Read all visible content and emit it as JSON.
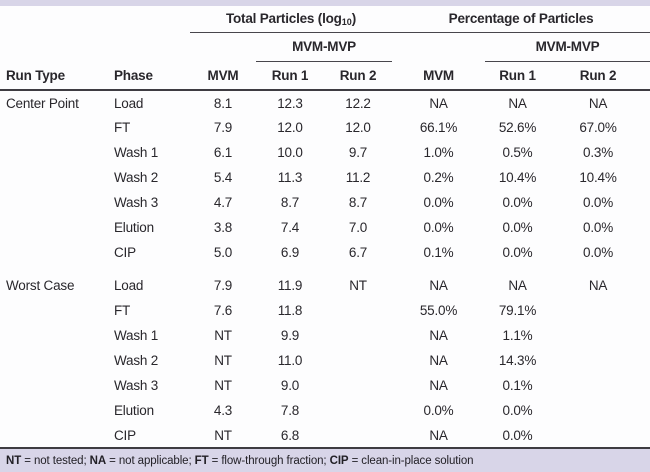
{
  "colors": {
    "accent_band": "#d8d5e8",
    "text": "#29272c",
    "rule": "#3e3c42"
  },
  "header": {
    "total_title_prefix": "Total Particles (log",
    "total_title_sub": "10",
    "total_title_suffix": ")",
    "pct_title": "Percentage of Particles",
    "mvm_mvp_label_left": "MVM-MVP",
    "mvm_mvp_label_right": "MVM-MVP",
    "columns": [
      "Run Type",
      "Phase",
      "MVM",
      "Run 1",
      "Run 2",
      "MVM",
      "Run 1",
      "Run 2"
    ]
  },
  "groups": [
    {
      "run_type": "Center Point",
      "rows": [
        {
          "phase": "Load",
          "values": [
            "8.1",
            "12.3",
            "12.2",
            "NA",
            "NA",
            "NA"
          ]
        },
        {
          "phase": "FT",
          "values": [
            "7.9",
            "12.0",
            "12.0",
            "66.1%",
            "52.6%",
            "67.0%"
          ]
        },
        {
          "phase": "Wash 1",
          "values": [
            "6.1",
            "10.0",
            "9.7",
            "1.0%",
            "0.5%",
            "0.3%"
          ]
        },
        {
          "phase": "Wash 2",
          "values": [
            "5.4",
            "11.3",
            "11.2",
            "0.2%",
            "10.4%",
            "10.4%"
          ]
        },
        {
          "phase": "Wash 3",
          "values": [
            "4.7",
            "8.7",
            "8.7",
            "0.0%",
            "0.0%",
            "0.0%"
          ]
        },
        {
          "phase": "Elution",
          "values": [
            "3.8",
            "7.4",
            "7.0",
            "0.0%",
            "0.0%",
            "0.0%"
          ]
        },
        {
          "phase": "CIP",
          "values": [
            "5.0",
            "6.9",
            "6.7",
            "0.1%",
            "0.0%",
            "0.0%"
          ]
        }
      ]
    },
    {
      "run_type": "Worst Case",
      "rows": [
        {
          "phase": "Load",
          "values": [
            "7.9",
            "11.9",
            "NT",
            "NA",
            "NA",
            "NA"
          ]
        },
        {
          "phase": "FT",
          "values": [
            "7.6",
            "11.8",
            "",
            "55.0%",
            "79.1%",
            ""
          ]
        },
        {
          "phase": "Wash 1",
          "values": [
            "NT",
            "9.9",
            "",
            "NA",
            "1.1%",
            ""
          ]
        },
        {
          "phase": "Wash 2",
          "values": [
            "NT",
            "11.0",
            "",
            "NA",
            "14.3%",
            ""
          ]
        },
        {
          "phase": "Wash 3",
          "values": [
            "NT",
            "9.0",
            "",
            "NA",
            "0.1%",
            ""
          ]
        },
        {
          "phase": "Elution",
          "values": [
            "4.3",
            "7.8",
            "",
            "0.0%",
            "0.0%",
            ""
          ]
        },
        {
          "phase": "CIP",
          "values": [
            "NT",
            "6.8",
            "",
            "NA",
            "0.0%",
            ""
          ]
        }
      ]
    }
  ],
  "footer": {
    "parts": [
      {
        "abbr": "NT",
        "text": " = not tested; "
      },
      {
        "abbr": "NA",
        "text": " = not applicable; "
      },
      {
        "abbr": "FT",
        "text": " = flow-through fraction; "
      },
      {
        "abbr": "CIP",
        "text": " = clean-in-place solution"
      }
    ]
  }
}
